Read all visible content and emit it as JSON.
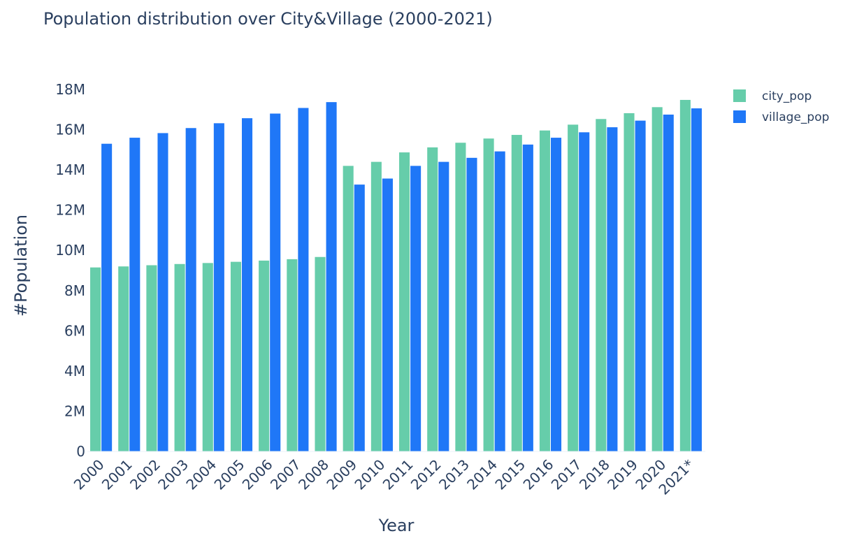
{
  "chart_data": {
    "type": "bar",
    "title": "Population distribution over City&Village (2000-2021)",
    "xlabel": "Year",
    "ylabel": "#Population",
    "ylim": [
      0,
      18000000
    ],
    "yticks": [
      0,
      2000000,
      4000000,
      6000000,
      8000000,
      10000000,
      12000000,
      14000000,
      16000000,
      18000000
    ],
    "ytick_labels": [
      "0",
      "2M",
      "4M",
      "6M",
      "8M",
      "10M",
      "12M",
      "14M",
      "16M",
      "18M"
    ],
    "grid": false,
    "legend_position": "top-right",
    "categories": [
      "2000",
      "2001",
      "2002",
      "2003",
      "2004",
      "2005",
      "2006",
      "2007",
      "2008",
      "2009",
      "2010",
      "2011",
      "2012",
      "2013",
      "2014",
      "2015",
      "2016",
      "2017",
      "2018",
      "2019",
      "2020",
      "2021*"
    ],
    "series": [
      {
        "name": "city_pop",
        "color": "#66cdaa",
        "values": [
          9150000,
          9200000,
          9260000,
          9320000,
          9370000,
          9430000,
          9490000,
          9560000,
          9670000,
          14200000,
          14400000,
          14870000,
          15120000,
          15350000,
          15560000,
          15740000,
          15960000,
          16250000,
          16530000,
          16820000,
          17120000,
          17480000
        ]
      },
      {
        "name": "village_pop",
        "color": "#1f77f7",
        "values": [
          15300000,
          15600000,
          15830000,
          16080000,
          16320000,
          16570000,
          16800000,
          17080000,
          17370000,
          13270000,
          13570000,
          14200000,
          14400000,
          14600000,
          14920000,
          15260000,
          15600000,
          15870000,
          16120000,
          16450000,
          16750000,
          17060000
        ]
      }
    ]
  }
}
